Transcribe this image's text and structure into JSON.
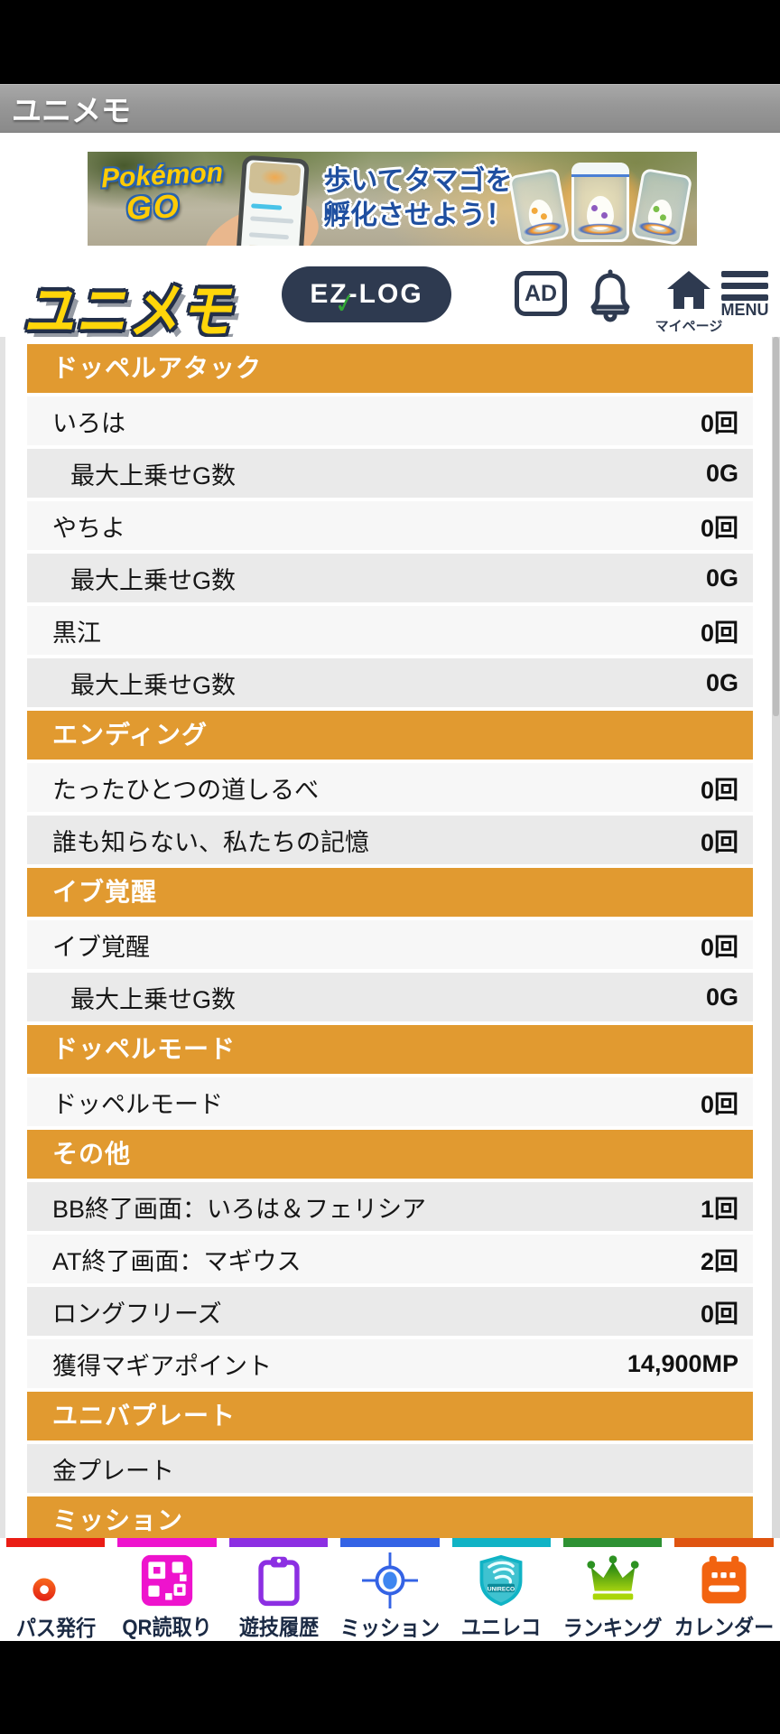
{
  "title_bar": {
    "title": "ユニメモ"
  },
  "ad_banner": {
    "brand_line1": "Pokémon",
    "brand_line2": "GO",
    "headline_line1": "歩いてタマゴを",
    "headline_line2": "孵化させよう！"
  },
  "header": {
    "logo_text": "ユニメモ",
    "ezlog_label": "EZ-LOG",
    "ad_label": "AD",
    "mypage_label": "マイページ",
    "menu_label": "MENU"
  },
  "stats_table": {
    "sections": [
      {
        "title": "ドッペルアタック",
        "rows": [
          {
            "label": "いろは",
            "value": "0回"
          },
          {
            "label": "最大上乗せG数",
            "value": "0G",
            "indent": true
          },
          {
            "label": "やちよ",
            "value": "0回"
          },
          {
            "label": "最大上乗せG数",
            "value": "0G",
            "indent": true
          },
          {
            "label": "黒江",
            "value": "0回"
          },
          {
            "label": "最大上乗せG数",
            "value": "0G",
            "indent": true
          }
        ]
      },
      {
        "title": "エンディング",
        "rows": [
          {
            "label": "たったひとつの道しるべ",
            "value": "0回"
          },
          {
            "label": "誰も知らない、私たちの記憶",
            "value": "0回"
          }
        ]
      },
      {
        "title": "イブ覚醒",
        "rows": [
          {
            "label": "イブ覚醒",
            "value": "0回"
          },
          {
            "label": "最大上乗せG数",
            "value": "0G",
            "indent": true
          }
        ]
      },
      {
        "title": "ドッペルモード",
        "rows": [
          {
            "label": "ドッペルモード",
            "value": "0回"
          }
        ]
      },
      {
        "title": "その他",
        "rows": [
          {
            "label": "BB終了画面：いろは＆フェリシア",
            "value": "1回"
          },
          {
            "label": "AT終了画面：マギウス",
            "value": "2回"
          },
          {
            "label": "ロングフリーズ",
            "value": "0回"
          },
          {
            "label": "獲得マギアポイント",
            "value": "14,900MP"
          }
        ]
      },
      {
        "title": "ユニバプレート",
        "rows": [
          {
            "label": "金プレート",
            "value": ""
          }
        ]
      },
      {
        "title": "ミッション",
        "rows": []
      }
    ]
  },
  "bottom_nav": {
    "items": [
      {
        "label": "パス発行",
        "icon": "key-icon",
        "color": "#ea1d15"
      },
      {
        "label": "QR読取り",
        "icon": "qr-icon",
        "color": "#ee13cd"
      },
      {
        "label": "遊技履歴",
        "icon": "clipboard-icon",
        "color": "#8c2fe2"
      },
      {
        "label": "ミッション",
        "icon": "target-icon",
        "color": "#3463e5"
      },
      {
        "label": "ユニレコ",
        "icon": "shield-icon",
        "color": "#10b3c5",
        "shield_text": "UNIRECO"
      },
      {
        "label": "ランキング",
        "icon": "crown-icon",
        "color": "#2e9133"
      },
      {
        "label": "カレンダー",
        "icon": "calendar-icon",
        "color": "#df5410"
      }
    ]
  },
  "colors": {
    "accent_orange": "#e19a30",
    "row_light": "#f7f7f7",
    "row_dark": "#eaeaea",
    "navy": "#2e3a50",
    "nav_label": "#1b2a44"
  }
}
